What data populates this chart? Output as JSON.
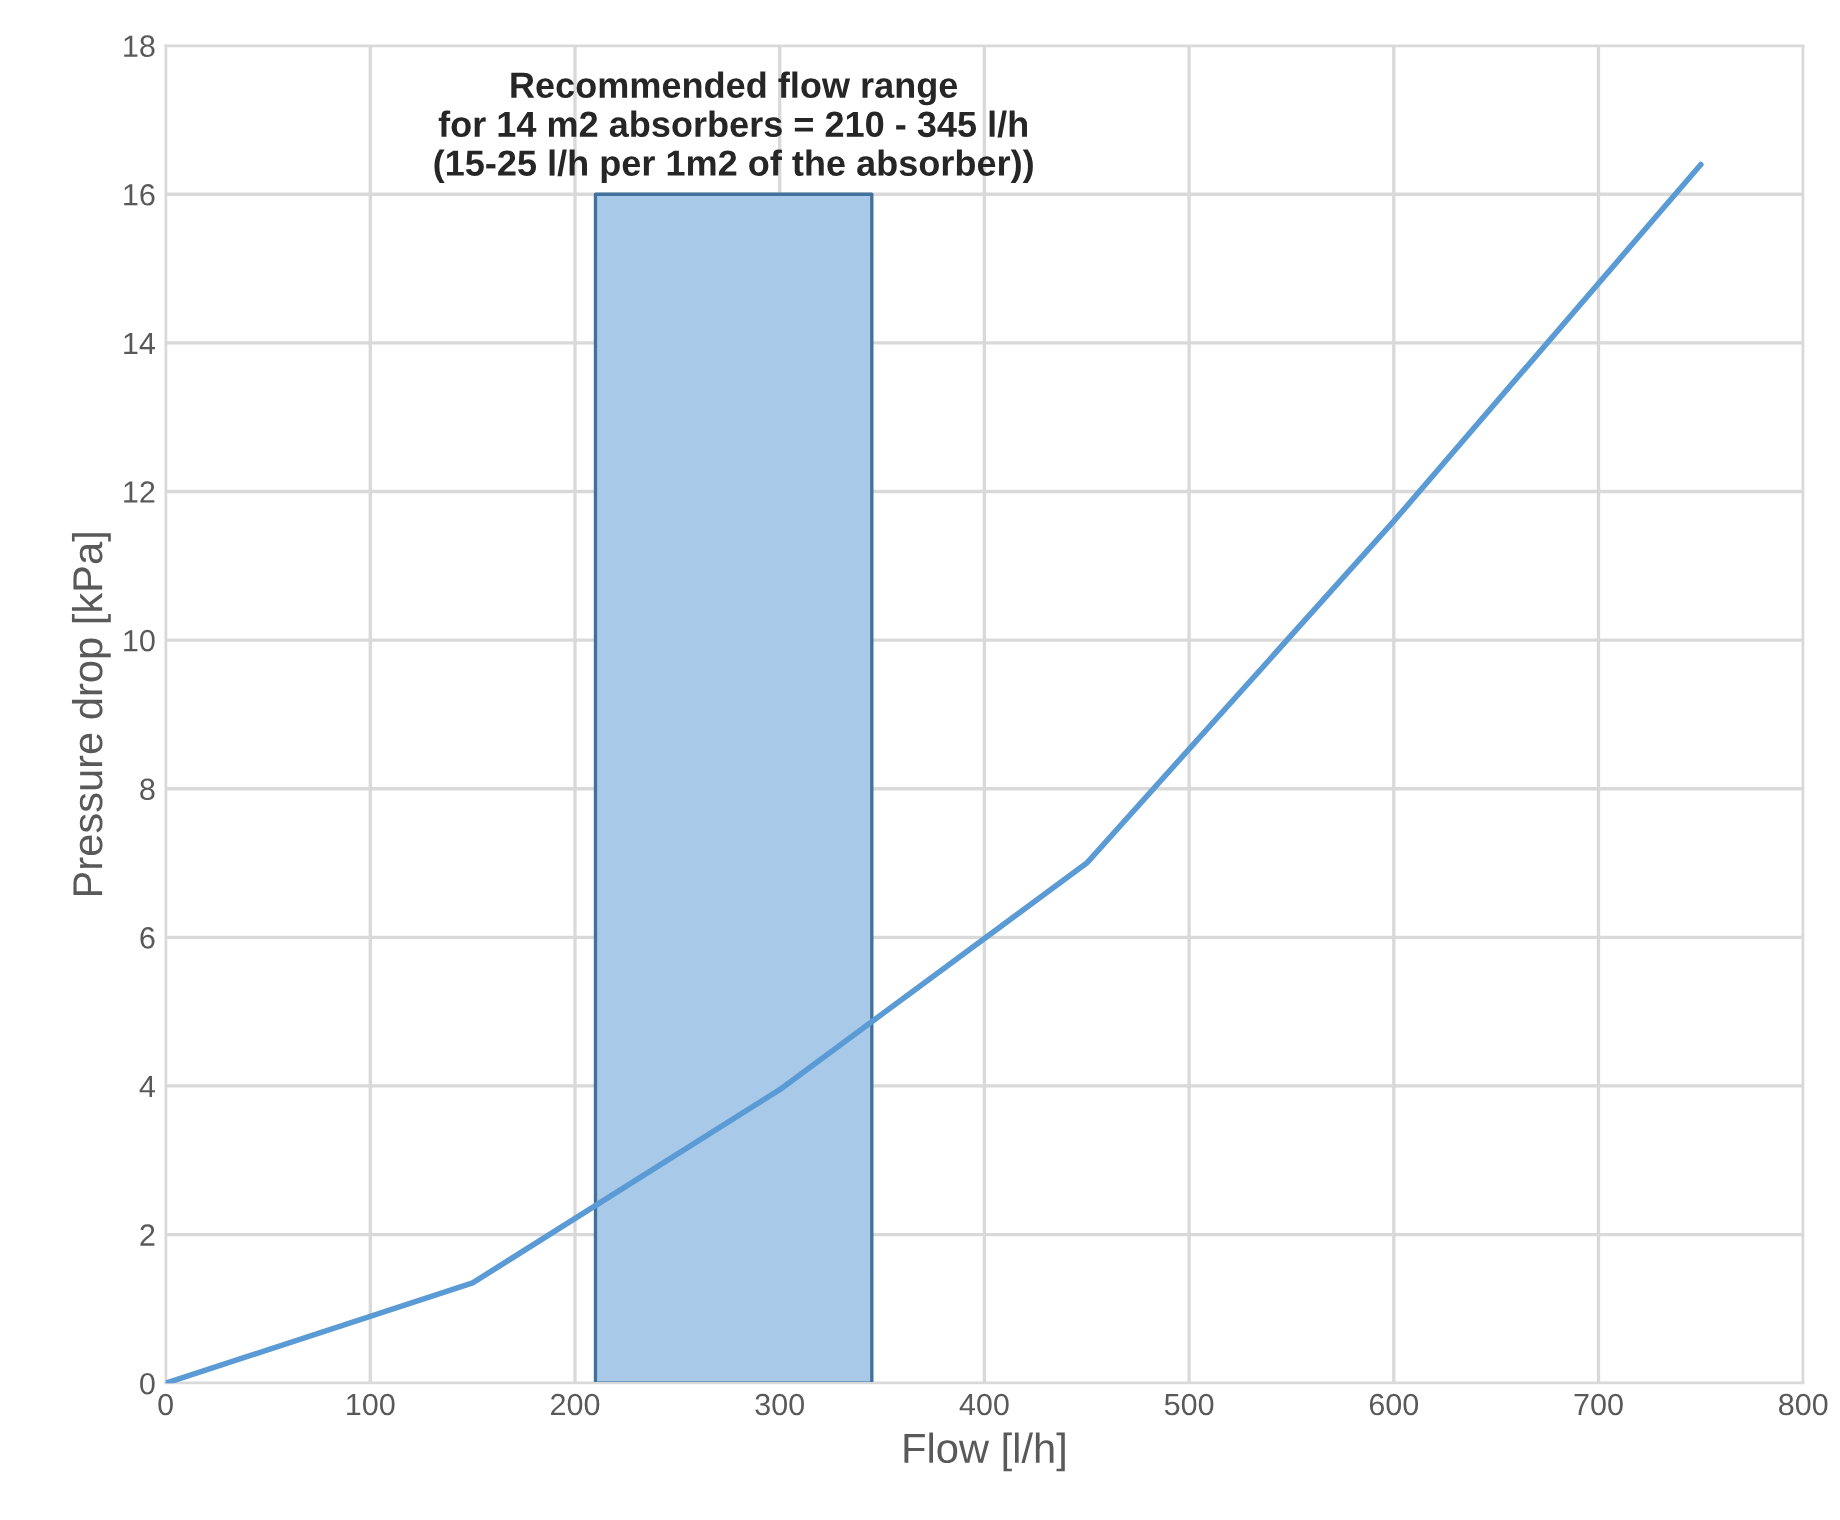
{
  "chart_data": {
    "type": "line",
    "xlabel": "Flow [l/h]",
    "ylabel": "Pressure drop [kPa]",
    "series": [
      {
        "type": "area",
        "color": "#a9c9e8",
        "x": [
          210,
          345
        ],
        "values": [
          16,
          16
        ]
      },
      {
        "color": "#5b9bd5",
        "x": [
          0,
          150,
          300,
          450,
          600,
          750
        ],
        "values": [
          0,
          1.35,
          3.95,
          7.0,
          11.6,
          16.4
        ]
      }
    ],
    "annotations": [
      {
        "text": "Recommended flow range\nfor 14 m2 absorbers = 210 - 345 l/h\n(15-25 l/h per 1m2 of the absorber))",
        "x": 277.5,
        "y": 16
      }
    ],
    "xlim": [
      0,
      800
    ],
    "xticks": [
      0,
      100,
      200,
      300,
      400,
      500,
      600,
      700,
      800
    ],
    "ylim": [
      0,
      18
    ],
    "yticks": [
      0,
      2,
      4,
      6,
      8,
      10,
      12,
      14,
      16,
      18
    ],
    "grid": true,
    "legend": false,
    "marker": "none",
    "line_style": "solid"
  }
}
